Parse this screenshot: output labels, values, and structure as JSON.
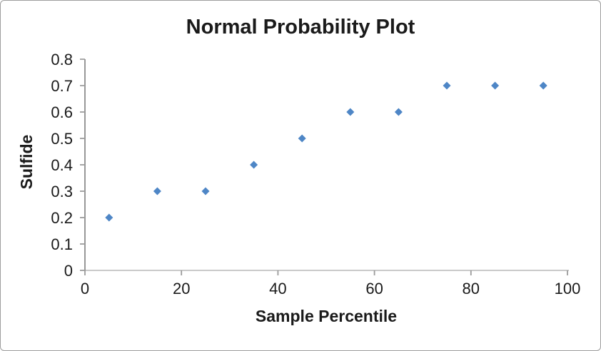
{
  "chart_data": {
    "type": "scatter",
    "title": "Normal Probability Plot",
    "xlabel": "Sample Percentile",
    "ylabel": "Sulfide",
    "points": [
      {
        "x": 5,
        "y": 0.2
      },
      {
        "x": 15,
        "y": 0.3
      },
      {
        "x": 25,
        "y": 0.3
      },
      {
        "x": 35,
        "y": 0.4
      },
      {
        "x": 45,
        "y": 0.5
      },
      {
        "x": 55,
        "y": 0.6
      },
      {
        "x": 65,
        "y": 0.6
      },
      {
        "x": 75,
        "y": 0.7
      },
      {
        "x": 85,
        "y": 0.7
      },
      {
        "x": 95,
        "y": 0.7
      }
    ],
    "xlim": [
      0,
      100
    ],
    "ylim": [
      0,
      0.8
    ],
    "xticks": [
      0,
      20,
      40,
      60,
      80,
      100
    ],
    "yticks": [
      0,
      0.1,
      0.2,
      0.3,
      0.4,
      0.5,
      0.6,
      0.7,
      0.8
    ],
    "xtick_labels": [
      "0",
      "20",
      "40",
      "60",
      "80",
      "100"
    ],
    "ytick_labels": [
      "0",
      "0.1",
      "0.2",
      "0.3",
      "0.4",
      "0.5",
      "0.6",
      "0.7",
      "0.8"
    ],
    "grid": false,
    "legend": null,
    "marker": "diamond",
    "marker_color": "#4e86c6",
    "axis_colors": {
      "y_line": "#8c8c8c",
      "x_line": "#c9c9c9",
      "tick": "#9b9b9b"
    },
    "text_color": "#1a1a1a",
    "frame_border_color": "#9d9d9d",
    "background": "#ffffff"
  }
}
